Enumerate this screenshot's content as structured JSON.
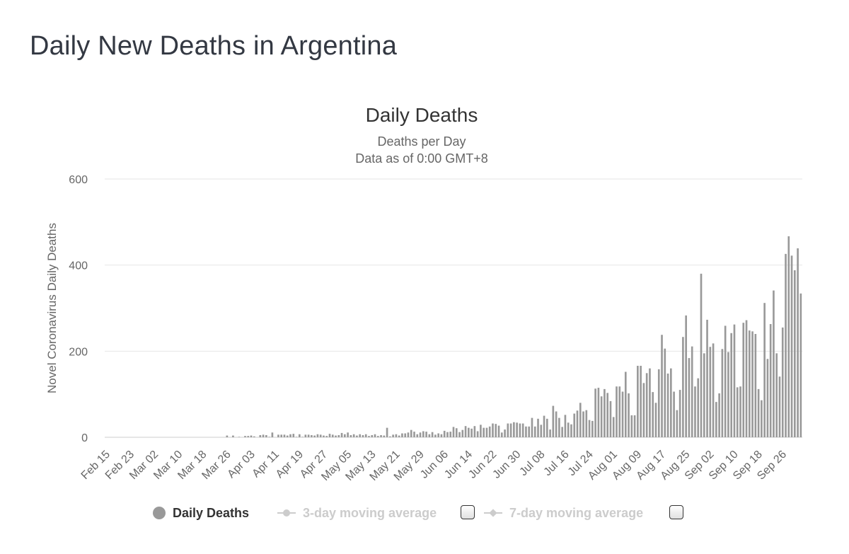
{
  "page_title": "Daily New Deaths in Argentina",
  "chart_data": {
    "type": "bar",
    "title": "Daily Deaths",
    "subtitle": [
      "Deaths per Day",
      "Data as of 0:00 GMT+8"
    ],
    "ylabel": "Novel Coronavirus Daily Deaths",
    "xlabel": "",
    "ylim": [
      0,
      600
    ],
    "yticks": [
      0,
      200,
      400,
      600
    ],
    "grid": true,
    "x_start": "Feb 15",
    "x_end": "Sep 26",
    "xtick_labels": [
      "Feb 15",
      "Feb 23",
      "Mar 02",
      "Mar 10",
      "Mar 18",
      "Mar 26",
      "Apr 03",
      "Apr 11",
      "Apr 19",
      "Apr 27",
      "May 05",
      "May 13",
      "May 21",
      "May 29",
      "Jun 06",
      "Jun 14",
      "Jun 22",
      "Jun 30",
      "Jul 08",
      "Jul 16",
      "Jul 24",
      "Aug 01",
      "Aug 09",
      "Aug 17",
      "Aug 25",
      "Sep 02",
      "Sep 10",
      "Sep 18",
      "Sep 26"
    ],
    "series": [
      {
        "name": "Daily Deaths",
        "color": "#999999",
        "values": [
          0,
          0,
          0,
          0,
          0,
          0,
          0,
          0,
          0,
          0,
          0,
          0,
          0,
          0,
          0,
          0,
          0,
          0,
          0,
          0,
          0,
          0,
          0,
          0,
          0,
          0,
          0,
          0,
          0,
          0,
          0,
          0,
          0,
          0,
          0,
          0,
          0,
          0,
          0,
          0,
          4,
          0,
          4,
          0,
          1,
          0,
          3,
          3,
          4,
          2,
          0,
          5,
          6,
          5,
          1,
          11,
          0,
          6,
          6,
          6,
          4,
          7,
          8,
          1,
          7,
          1,
          6,
          6,
          5,
          4,
          7,
          6,
          4,
          3,
          8,
          6,
          4,
          5,
          10,
          7,
          11,
          5,
          7,
          4,
          7,
          5,
          7,
          3,
          5,
          7,
          3,
          5,
          4,
          22,
          2,
          6,
          7,
          4,
          9,
          9,
          11,
          17,
          13,
          7,
          11,
          14,
          13,
          7,
          12,
          6,
          9,
          7,
          15,
          12,
          13,
          24,
          21,
          12,
          17,
          26,
          22,
          20,
          26,
          14,
          29,
          22,
          22,
          25,
          32,
          31,
          27,
          11,
          18,
          32,
          32,
          35,
          34,
          32,
          32,
          25,
          25,
          45,
          25,
          43,
          29,
          50,
          43,
          18,
          73,
          60,
          45,
          24,
          52,
          34,
          30,
          55,
          62,
          80,
          60,
          63,
          40,
          38,
          113,
          115,
          95,
          112,
          103,
          84,
          47,
          118,
          118,
          106,
          152,
          102,
          51,
          51,
          166,
          166,
          126,
          149,
          160,
          105,
          80,
          158,
          238,
          206,
          148,
          160,
          106,
          63,
          110,
          233,
          283,
          184,
          211,
          118,
          137,
          380,
          195,
          273,
          210,
          218,
          82,
          102,
          205,
          259,
          198,
          242,
          262,
          116,
          118,
          266,
          272,
          248,
          246,
          240,
          112,
          86,
          312,
          182,
          263,
          341,
          195,
          141,
          255,
          426,
          467,
          422,
          388,
          439,
          334
        ]
      },
      {
        "name": "3-day moving average",
        "color": "#cccccc",
        "visible": false,
        "values": []
      },
      {
        "name": "7-day moving average",
        "color": "#cccccc",
        "visible": false,
        "values": []
      }
    ]
  },
  "legend": [
    {
      "label": "Daily Deaths",
      "active": true,
      "color": "#999999",
      "text_color": "#333333"
    },
    {
      "label": "3-day moving average",
      "active": false,
      "color": "#cccccc",
      "text_color": "#cccccc"
    },
    {
      "label": "7-day moving average",
      "active": false,
      "color": "#cccccc",
      "text_color": "#cccccc"
    }
  ]
}
